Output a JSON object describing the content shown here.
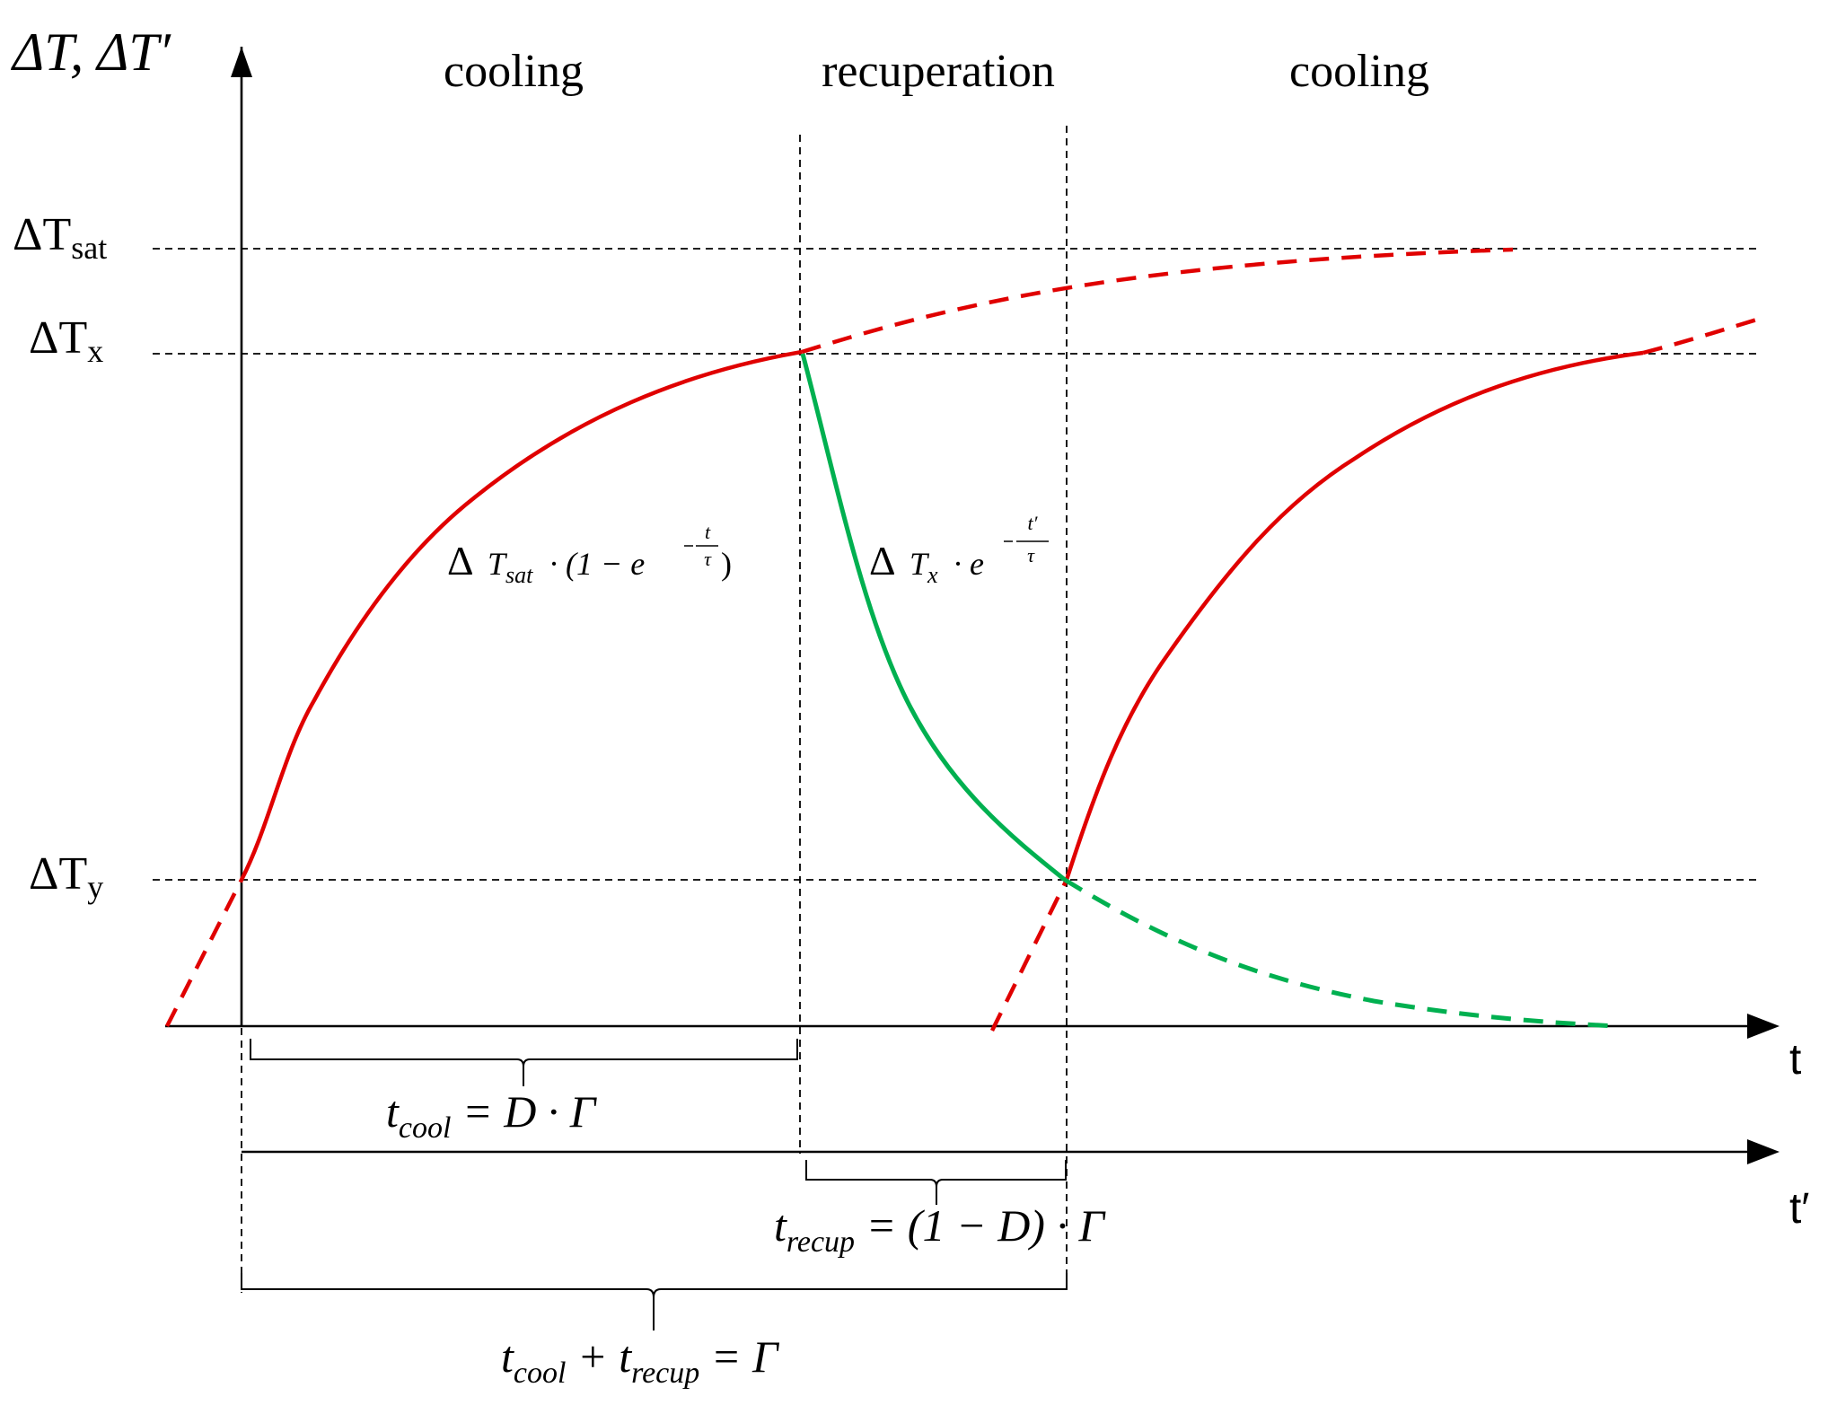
{
  "colors": {
    "cooling_curve": "#e00000",
    "recuperation_curve": "#00b050",
    "axes": "#000000"
  },
  "y_axis": {
    "label_main": "ΔT, ΔT′",
    "levels": {
      "sat": {
        "symbol": "ΔT",
        "sub": "sat"
      },
      "x": {
        "symbol": "ΔT",
        "sub": "x"
      },
      "y": {
        "symbol": "ΔT",
        "sub": "y"
      }
    }
  },
  "x_axes": {
    "t_label": "t",
    "t_prime_label": "t′"
  },
  "phases": [
    "cooling",
    "recuperation",
    "cooling"
  ],
  "formulas": {
    "cooling": {
      "delta": "Δ",
      "T": "T",
      "sub": "sat",
      "mid": " · (1 − e",
      "exp_num": "t",
      "exp_den": "τ",
      "close": ")"
    },
    "recuperation": {
      "delta": "Δ",
      "T": "T",
      "sub": "x",
      "mid": " · e",
      "exp_num": "t′",
      "exp_den": "τ"
    }
  },
  "braces": {
    "t_cool": {
      "var": "t",
      "sub": "cool",
      "rest": " =  D · Γ"
    },
    "t_recup": {
      "var": "t",
      "sub": "recup",
      "rest": " = (1 − D) · Γ"
    },
    "total": {
      "var1": "t",
      "sub1": "cool",
      "plus": " + ",
      "var2": "t",
      "sub2": "recup",
      "rest": " = Γ"
    }
  }
}
